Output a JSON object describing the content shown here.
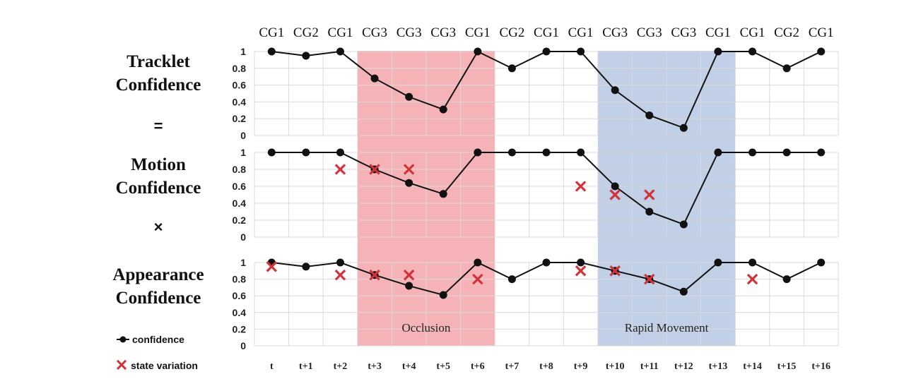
{
  "chart_data": {
    "type": "line",
    "x": [
      "t",
      "t+1",
      "t+2",
      "t+3",
      "t+4",
      "t+5",
      "t+6",
      "t+7",
      "t+8",
      "t+9",
      "t+10",
      "t+11",
      "t+12",
      "t+13",
      "t+14",
      "t+15",
      "t+16"
    ],
    "groups": [
      "CG1",
      "CG2",
      "CG1",
      "CG3",
      "CG3",
      "CG3",
      "CG1",
      "CG2",
      "CG1",
      "CG1",
      "CG3",
      "CG3",
      "CG3",
      "CG1",
      "CG1",
      "CG2",
      "CG1"
    ],
    "yticks": [
      "1",
      "0.8",
      "0.6",
      "0.4",
      "0.2",
      "0"
    ],
    "ylim": [
      0,
      1
    ],
    "grid": true,
    "panels": [
      {
        "label_lines": [
          "Tracklet",
          "Confidence"
        ],
        "confidence": [
          1,
          0.95,
          1,
          0.68,
          0.46,
          0.31,
          1,
          0.8,
          1,
          1,
          0.54,
          0.24,
          0.09,
          1,
          1,
          0.8,
          1
        ],
        "state_variation": []
      },
      {
        "label_lines": [
          "Motion",
          "Confidence"
        ],
        "confidence": [
          1,
          1,
          1,
          0.8,
          0.64,
          0.51,
          1,
          1,
          1,
          1,
          0.6,
          0.3,
          0.15,
          1,
          1,
          1,
          1
        ],
        "state_variation": [
          [
            2,
            0.8
          ],
          [
            3,
            0.8
          ],
          [
            4,
            0.8
          ],
          [
            9,
            0.6
          ],
          [
            10,
            0.5
          ],
          [
            11,
            0.5
          ]
        ]
      },
      {
        "label_lines": [
          "Appearance",
          "Confidence"
        ],
        "confidence": [
          1,
          0.95,
          1,
          0.85,
          0.72,
          0.61,
          1,
          0.8,
          1,
          1,
          0.9,
          0.8,
          0.65,
          1,
          1,
          0.8,
          1
        ],
        "state_variation": [
          [
            0,
            0.95
          ],
          [
            2,
            0.85
          ],
          [
            3,
            0.85
          ],
          [
            4,
            0.85
          ],
          [
            6,
            0.8
          ],
          [
            9,
            0.9
          ],
          [
            10,
            0.9
          ],
          [
            11,
            0.8
          ],
          [
            14,
            0.8
          ]
        ]
      }
    ],
    "operators": [
      "=",
      "×"
    ],
    "regions": [
      {
        "label": "Occlusion",
        "from": 3,
        "to": 6,
        "color": "#f4a6aa"
      },
      {
        "label": "Rapid Movement",
        "from": 10,
        "to": 13,
        "color": "#b6c8e3"
      }
    ],
    "legend": {
      "position": "bottom-left",
      "confidence_label": "confidence",
      "state_label": "state variation"
    },
    "colors": {
      "line": "#111111",
      "marker": "#111111",
      "cross": "#d2333a",
      "grid": "#d9d9d9"
    }
  }
}
